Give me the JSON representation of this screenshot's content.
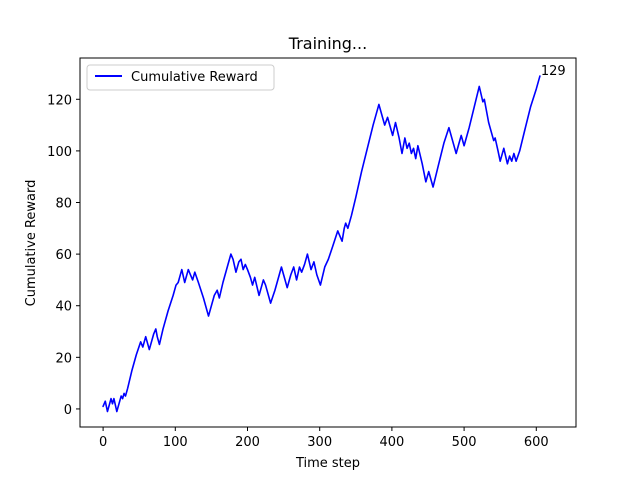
{
  "chart_data": {
    "type": "line",
    "title": "Training...",
    "xlabel": "Time step",
    "ylabel": "Cumulative Reward",
    "xlim": [
      -32,
      655
    ],
    "ylim": [
      -7,
      136
    ],
    "xticks": [
      0,
      100,
      200,
      300,
      400,
      500,
      600
    ],
    "yticks": [
      0,
      20,
      40,
      60,
      80,
      100,
      120
    ],
    "grid": false,
    "legend": "upper-left",
    "series": [
      {
        "name": "Cumulative Reward",
        "color": "#0000ff",
        "points": [
          [
            0,
            1
          ],
          [
            3,
            3
          ],
          [
            6,
            -1
          ],
          [
            9,
            2
          ],
          [
            11,
            4
          ],
          [
            13,
            2
          ],
          [
            15,
            4
          ],
          [
            19,
            -1
          ],
          [
            23,
            3
          ],
          [
            25,
            5
          ],
          [
            27,
            4
          ],
          [
            29,
            6
          ],
          [
            31,
            5
          ],
          [
            34,
            8
          ],
          [
            40,
            15
          ],
          [
            46,
            21
          ],
          [
            52,
            26
          ],
          [
            55,
            24
          ],
          [
            59,
            28
          ],
          [
            64,
            23
          ],
          [
            70,
            29
          ],
          [
            73,
            31
          ],
          [
            75,
            28
          ],
          [
            78,
            25
          ],
          [
            83,
            31
          ],
          [
            90,
            38
          ],
          [
            97,
            44
          ],
          [
            101,
            48
          ],
          [
            104,
            49
          ],
          [
            109,
            54
          ],
          [
            113,
            49
          ],
          [
            118,
            54
          ],
          [
            121,
            52
          ],
          [
            124,
            50
          ],
          [
            127,
            53
          ],
          [
            132,
            49
          ],
          [
            139,
            43
          ],
          [
            146,
            36
          ],
          [
            154,
            44
          ],
          [
            158,
            46
          ],
          [
            161,
            43
          ],
          [
            166,
            49
          ],
          [
            172,
            55
          ],
          [
            177,
            60
          ],
          [
            180,
            58
          ],
          [
            184,
            53
          ],
          [
            188,
            57
          ],
          [
            191,
            58
          ],
          [
            194,
            54
          ],
          [
            197,
            56
          ],
          [
            200,
            54
          ],
          [
            204,
            51
          ],
          [
            207,
            48
          ],
          [
            210,
            51
          ],
          [
            216,
            44
          ],
          [
            222,
            50
          ],
          [
            225,
            48
          ],
          [
            228,
            45
          ],
          [
            232,
            41
          ],
          [
            238,
            46
          ],
          [
            244,
            52
          ],
          [
            247,
            55
          ],
          [
            250,
            52
          ],
          [
            255,
            47
          ],
          [
            260,
            52
          ],
          [
            264,
            55
          ],
          [
            268,
            50
          ],
          [
            272,
            55
          ],
          [
            275,
            53
          ],
          [
            279,
            56
          ],
          [
            283,
            60
          ],
          [
            288,
            54
          ],
          [
            292,
            57
          ],
          [
            296,
            52
          ],
          [
            301,
            48
          ],
          [
            307,
            55
          ],
          [
            312,
            58
          ],
          [
            318,
            63
          ],
          [
            325,
            69
          ],
          [
            328,
            67
          ],
          [
            331,
            65
          ],
          [
            334,
            70
          ],
          [
            336,
            72
          ],
          [
            339,
            70
          ],
          [
            344,
            75
          ],
          [
            350,
            82
          ],
          [
            358,
            92
          ],
          [
            366,
            101
          ],
          [
            374,
            110
          ],
          [
            382,
            118
          ],
          [
            386,
            114
          ],
          [
            390,
            110
          ],
          [
            394,
            113
          ],
          [
            397,
            110
          ],
          [
            401,
            106
          ],
          [
            405,
            111
          ],
          [
            410,
            105
          ],
          [
            414,
            99
          ],
          [
            418,
            105
          ],
          [
            421,
            101
          ],
          [
            424,
            103
          ],
          [
            427,
            99
          ],
          [
            430,
            101
          ],
          [
            433,
            97
          ],
          [
            436,
            102
          ],
          [
            442,
            95
          ],
          [
            447,
            88
          ],
          [
            451,
            92
          ],
          [
            457,
            86
          ],
          [
            464,
            94
          ],
          [
            472,
            103
          ],
          [
            479,
            109
          ],
          [
            484,
            104
          ],
          [
            489,
            99
          ],
          [
            493,
            103
          ],
          [
            496,
            106
          ],
          [
            500,
            102
          ],
          [
            507,
            109
          ],
          [
            514,
            117
          ],
          [
            521,
            125
          ],
          [
            526,
            119
          ],
          [
            528,
            120
          ],
          [
            534,
            111
          ],
          [
            541,
            104
          ],
          [
            543,
            105
          ],
          [
            547,
            100
          ],
          [
            550,
            96
          ],
          [
            555,
            101
          ],
          [
            560,
            95
          ],
          [
            563,
            98
          ],
          [
            566,
            96
          ],
          [
            569,
            99
          ],
          [
            572,
            96
          ],
          [
            577,
            100
          ],
          [
            584,
            108
          ],
          [
            592,
            117
          ],
          [
            600,
            124
          ],
          [
            605,
            129
          ]
        ]
      }
    ],
    "annotations": [
      {
        "text": "129",
        "x": 605,
        "y": 129
      }
    ]
  }
}
